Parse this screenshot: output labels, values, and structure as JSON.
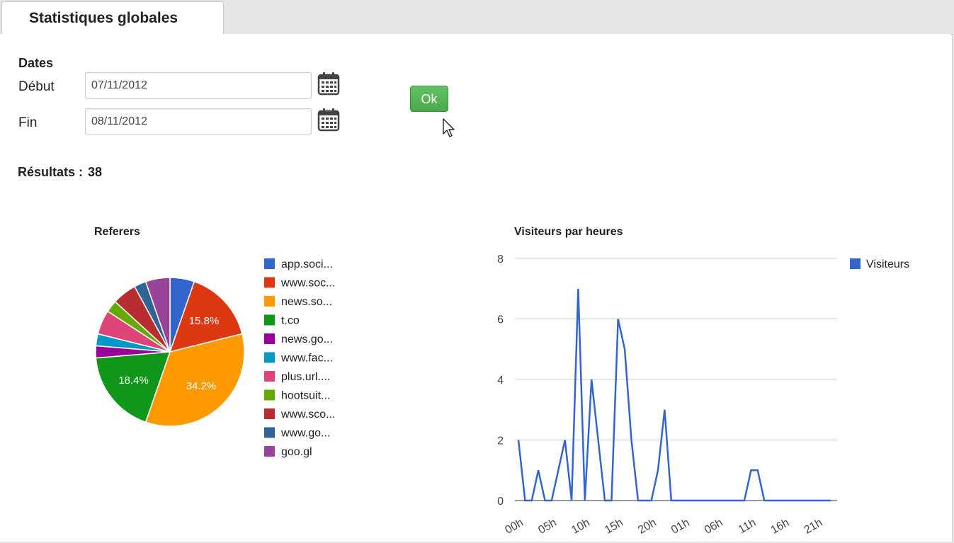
{
  "tab": {
    "title": "Statistiques globales"
  },
  "dates": {
    "title": "Dates",
    "debut_label": "Début",
    "debut_value": "07/11/2012",
    "fin_label": "Fin",
    "fin_value": "08/11/2012"
  },
  "ok_label": "Ok",
  "results": {
    "label": "Résultats :",
    "count": "38"
  },
  "colors": {
    "ok_button": "#5cb85c",
    "line": "#3366cc"
  },
  "chart_data": [
    {
      "type": "pie",
      "title": "Referers",
      "slices": [
        {
          "label": "app.soci...",
          "value": 5.3,
          "color": "#3366cc"
        },
        {
          "label": "www.soc...",
          "value": 15.8,
          "color": "#dc3912"
        },
        {
          "label": "news.so...",
          "value": 34.2,
          "color": "#ff9900"
        },
        {
          "label": "t.co",
          "value": 18.4,
          "color": "#109618"
        },
        {
          "label": "news.go...",
          "value": 2.6,
          "color": "#990099"
        },
        {
          "label": "www.fac...",
          "value": 2.6,
          "color": "#0099c6"
        },
        {
          "label": "plus.url....",
          "value": 5.3,
          "color": "#dd4477"
        },
        {
          "label": "hootsuit...",
          "value": 2.6,
          "color": "#66aa00"
        },
        {
          "label": "www.sco...",
          "value": 5.3,
          "color": "#b82e2e"
        },
        {
          "label": "www.go...",
          "value": 2.6,
          "color": "#316395"
        },
        {
          "label": "goo.gl",
          "value": 5.3,
          "color": "#994499"
        }
      ],
      "slice_labels": [
        "15.8%",
        "34.2%",
        "18.4%"
      ],
      "legend": "right"
    },
    {
      "type": "line",
      "title": "Visiteurs par heures",
      "series": [
        {
          "name": "Visiteurs",
          "color": "#3366cc",
          "values": [
            2,
            0,
            0,
            1,
            0,
            0,
            1,
            2,
            0,
            7,
            0,
            4,
            2,
            0,
            0,
            6,
            5,
            2,
            0,
            0,
            0,
            1,
            3,
            0,
            0,
            0,
            0,
            0,
            0,
            0,
            0,
            0,
            0,
            0,
            0,
            1,
            1,
            0,
            0,
            0,
            0,
            0,
            0,
            0,
            0,
            0,
            0,
            0
          ]
        }
      ],
      "x_tick_labels": [
        "00h",
        "05h",
        "10h",
        "15h",
        "20h",
        "01h",
        "06h",
        "11h",
        "16h",
        "21h"
      ],
      "y_ticks": [
        "0",
        "2",
        "4",
        "6",
        "8"
      ],
      "ylim": [
        0,
        8
      ],
      "grid": true,
      "legend": "right"
    }
  ]
}
